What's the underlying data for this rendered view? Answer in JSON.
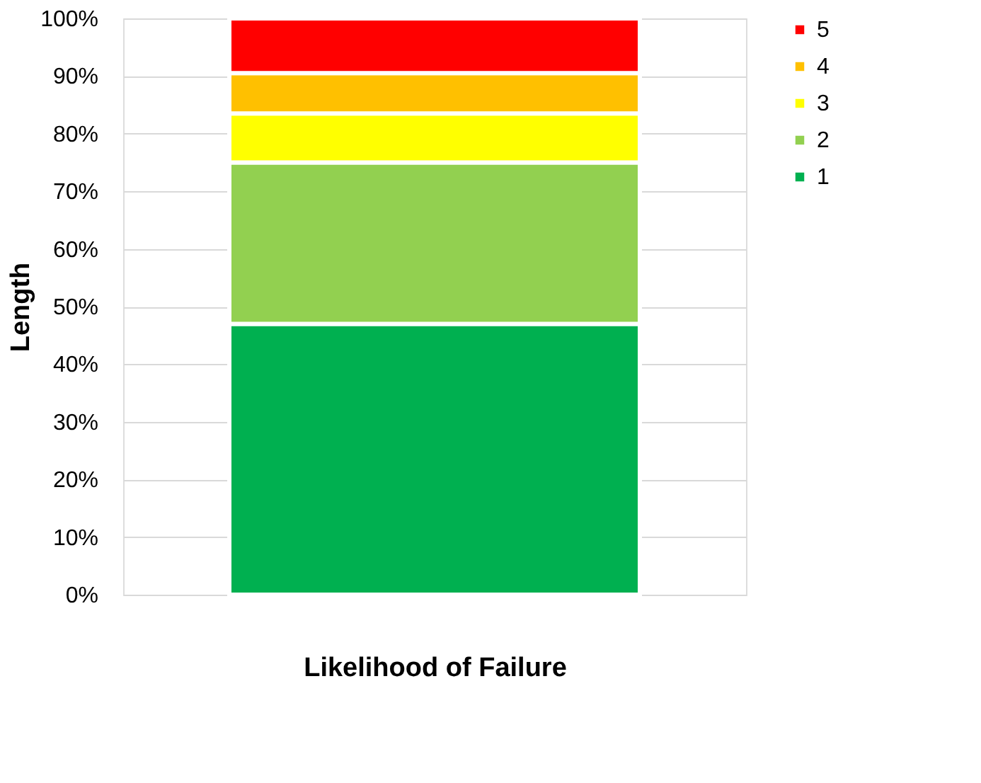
{
  "chart_data": {
    "type": "bar",
    "stacked": true,
    "xlabel": "Likelihood of Failure",
    "ylabel": "Length",
    "categories": [
      null
    ],
    "series": [
      {
        "name": "1",
        "color": "#00b050",
        "values": [
          47
        ]
      },
      {
        "name": "2",
        "color": "#92d050",
        "values": [
          28
        ]
      },
      {
        "name": "3",
        "color": "#ffff00",
        "values": [
          8.5
        ]
      },
      {
        "name": "4",
        "color": "#ffc000",
        "values": [
          7
        ]
      },
      {
        "name": "5",
        "color": "#ff0000",
        "values": [
          9.5
        ]
      }
    ],
    "ylim": [
      0,
      100
    ],
    "yticks": [
      {
        "value": 0,
        "label": "0%"
      },
      {
        "value": 10,
        "label": "10%"
      },
      {
        "value": 20,
        "label": "20%"
      },
      {
        "value": 30,
        "label": "30%"
      },
      {
        "value": 40,
        "label": "40%"
      },
      {
        "value": 50,
        "label": "50%"
      },
      {
        "value": 60,
        "label": "60%"
      },
      {
        "value": 70,
        "label": "70%"
      },
      {
        "value": 80,
        "label": "80%"
      },
      {
        "value": 90,
        "label": "90%"
      },
      {
        "value": 100,
        "label": "100%"
      }
    ],
    "grid": "y",
    "legend": "right"
  }
}
